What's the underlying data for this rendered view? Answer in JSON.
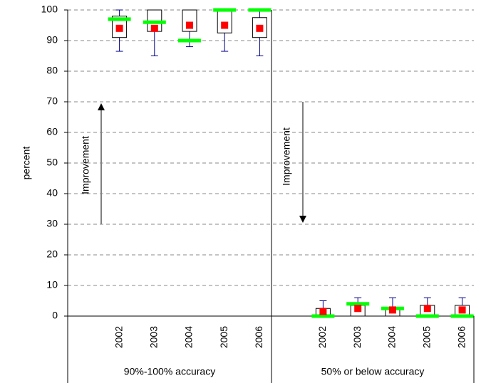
{
  "chart_data": {
    "type": "box",
    "ylabel": "percent",
    "ylim": [
      0,
      100
    ],
    "yticks": [
      0,
      10,
      20,
      30,
      40,
      50,
      60,
      70,
      80,
      90,
      100
    ],
    "grid": true,
    "colors": {
      "box": "#000000",
      "whisker": "#00008b",
      "mean": "#ff0000",
      "marker": "#00ff00"
    },
    "annotations": [
      "Improvement",
      "Improvement"
    ],
    "groups": [
      {
        "label": "90%-100% accuracy",
        "categories": [
          "2002",
          "2003",
          "2004",
          "2005",
          "2006"
        ],
        "boxes": [
          {
            "min": 86.5,
            "q1": 91,
            "q3": 98,
            "max": 100,
            "mean": 94,
            "marker": 97
          },
          {
            "min": 85,
            "q1": 93,
            "q3": 100,
            "max": 100,
            "mean": 94,
            "marker": 96
          },
          {
            "min": 88,
            "q1": 93,
            "q3": 100,
            "max": 100,
            "mean": 95,
            "marker": 90
          },
          {
            "min": 86.5,
            "q1": 92.5,
            "q3": 100,
            "max": 100,
            "mean": 95,
            "marker": 100
          },
          {
            "min": 85,
            "q1": 91,
            "q3": 97.5,
            "max": 100,
            "mean": 94,
            "marker": 100
          }
        ]
      },
      {
        "label": "50% or below accuracy",
        "categories": [
          "2002",
          "2003",
          "2004",
          "2005",
          "2006"
        ],
        "boxes": [
          {
            "min": 0,
            "q1": 0,
            "q3": 2.5,
            "max": 5,
            "mean": 1.5,
            "marker": 0
          },
          {
            "min": 0,
            "q1": 0,
            "q3": 3.5,
            "max": 6,
            "mean": 2.5,
            "marker": 4
          },
          {
            "min": 0,
            "q1": 0,
            "q3": 2.5,
            "max": 6,
            "mean": 2,
            "marker": 2.5
          },
          {
            "min": 0,
            "q1": 0,
            "q3": 3.5,
            "max": 6,
            "mean": 2.5,
            "marker": 0
          },
          {
            "min": 0,
            "q1": 0,
            "q3": 3.5,
            "max": 6,
            "mean": 2,
            "marker": 0
          }
        ]
      }
    ]
  }
}
